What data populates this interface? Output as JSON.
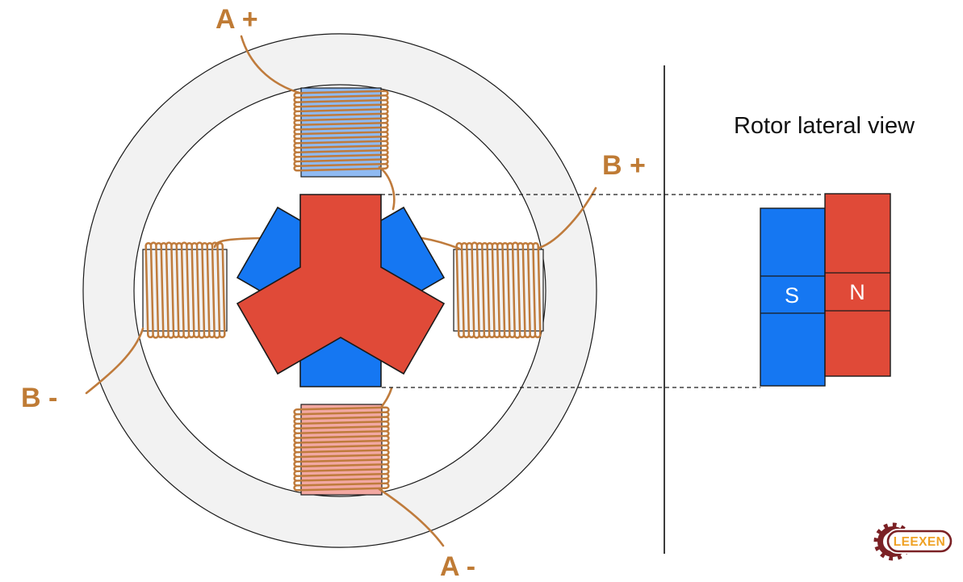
{
  "palette": {
    "red": "#E04A38",
    "blue": "#1577F2",
    "coil_blue": "#8FBAF2",
    "coil_pink": "#F2A8A2",
    "stator_fill": "#F2F2F2",
    "outline": "#1A1A1A",
    "copper": "#BF7B3C",
    "label_text": "#BF7B35",
    "maroon": "#7B2125",
    "logo_orange": "#EFA226"
  },
  "labels": {
    "a_plus": "A +",
    "a_minus": "A -",
    "b_plus": "B +",
    "b_minus": "B -"
  },
  "lateral_view": {
    "title": "Rotor lateral view",
    "south": "S",
    "north": "N"
  },
  "logo": {
    "brand": "LEEXEN"
  }
}
